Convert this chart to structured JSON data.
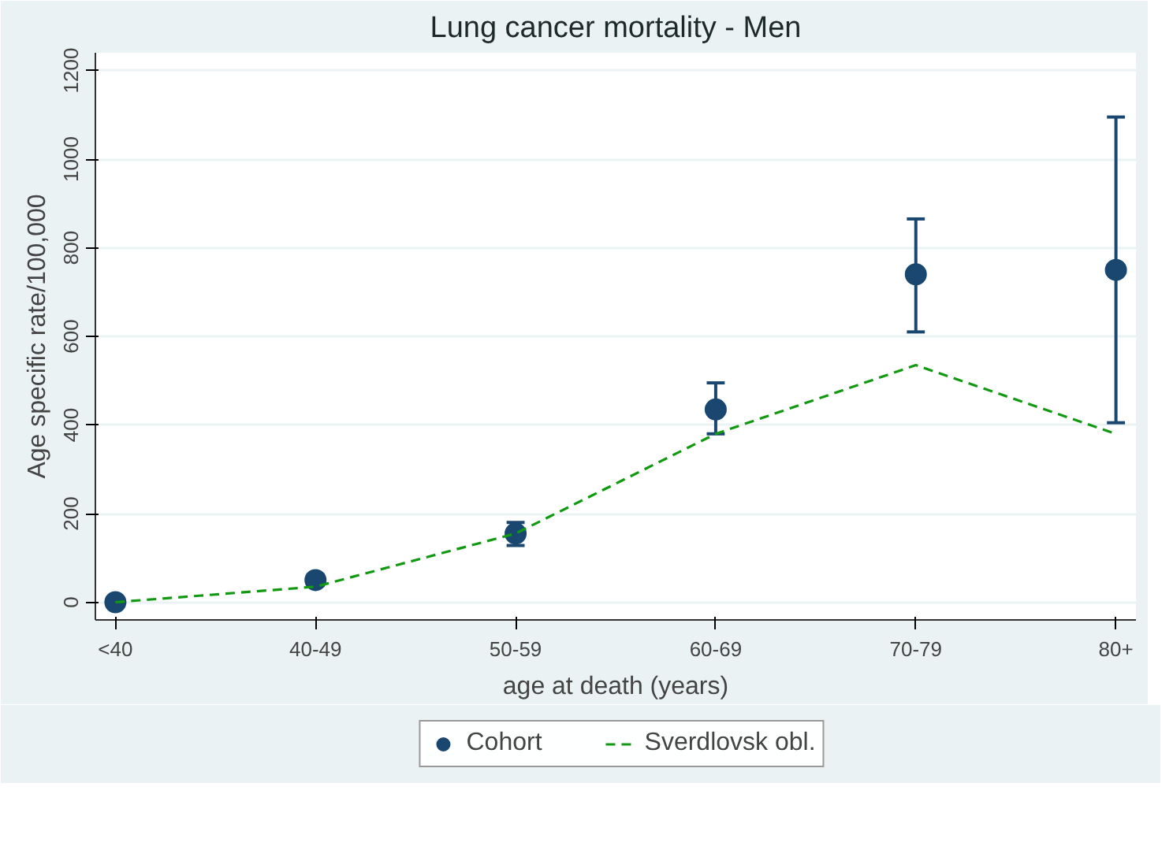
{
  "chart_data": {
    "type": "line",
    "title": "Lung cancer mortality - Men",
    "xlabel": "age at death (years)",
    "ylabel": "Age specific rate/100,000",
    "categories": [
      "<40",
      "40-49",
      "50-59",
      "60-69",
      "70-79",
      "80+"
    ],
    "series": [
      {
        "name": "Cohort",
        "type": "scatter",
        "color": "#1a476f",
        "marker": "circle",
        "values": [
          0,
          50,
          155,
          435,
          740,
          750
        ],
        "errors": [
          null,
          [
            38,
            62
          ],
          [
            128,
            180
          ],
          [
            380,
            495
          ],
          [
            610,
            865
          ],
          [
            405,
            1095
          ]
        ]
      },
      {
        "name": "Sverdlovsk obl.",
        "color": "#119a11",
        "line_style": "dashed",
        "values": [
          0,
          35,
          155,
          380,
          535,
          380
        ]
      }
    ],
    "ylim": [
      -40,
      1240
    ],
    "yticks": [
      0,
      200,
      400,
      600,
      800,
      1000,
      1200
    ],
    "grid": "y",
    "legend": "bottom"
  }
}
